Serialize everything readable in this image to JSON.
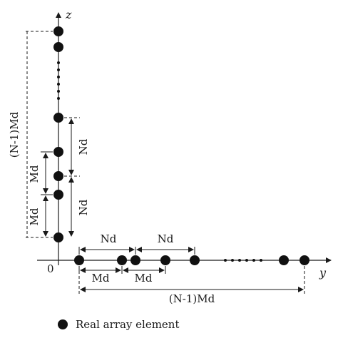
{
  "diagram": {
    "axes": {
      "z_label": "z",
      "y_label": "y",
      "origin_label": "0"
    },
    "vertical_dimensions": {
      "total": "(N-1)Md",
      "nd_upper": "Nd",
      "nd_lower": "Nd",
      "md_upper": "Md",
      "md_lower": "Md"
    },
    "horizontal_dimensions": {
      "nd_left": "Nd",
      "nd_right": "Nd",
      "md_left": "Md",
      "md_right": "Md",
      "total": "(N-1)Md"
    },
    "legend": {
      "label": "Real array element"
    }
  }
}
